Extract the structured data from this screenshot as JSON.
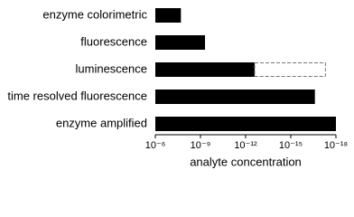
{
  "chart_data": {
    "type": "hbar",
    "x_label": "analyte concentration",
    "categories": [
      "enzyme colorimetric",
      "fluorescence",
      "luminescence",
      "time resolved fluorescence",
      "enzyme amplified"
    ],
    "values": [
      2e-08,
      5e-10,
      2.5e-13,
      2.5e-17,
      1e-18
    ],
    "potential_values": [
      null,
      null,
      5e-18,
      null,
      null
    ],
    "color": "#000000",
    "potential_color": "#777777",
    "xscale": "log",
    "xlim": [
      1e-06,
      1e-18
    ],
    "xticks": [
      {
        "value": 1e-06,
        "label": "10⁻⁶"
      },
      {
        "value": 1e-09,
        "label": "10⁻⁹"
      },
      {
        "value": 1e-12,
        "label": "10⁻¹²"
      },
      {
        "value": 1e-15,
        "label": "10⁻¹⁵"
      },
      {
        "value": 1e-18,
        "label": "10⁻¹⁸"
      }
    ]
  }
}
